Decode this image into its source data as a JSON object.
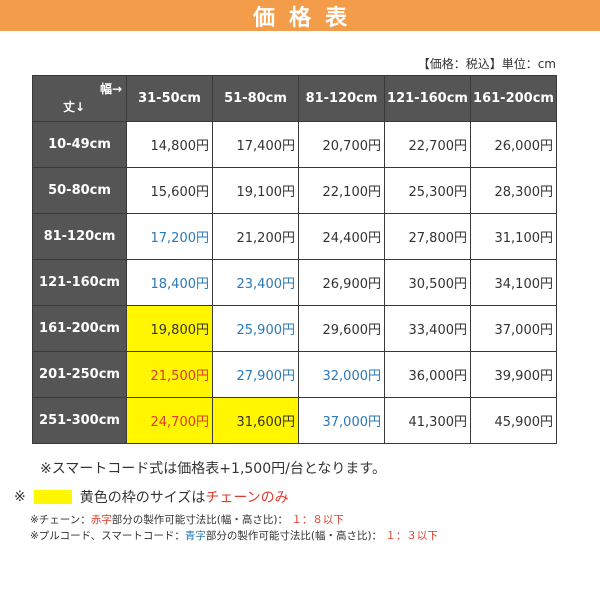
{
  "banner": {
    "title": "価格表"
  },
  "unit_note": "【価格：税込】単位：cm",
  "table": {
    "corner_width": "幅→",
    "corner_height": "丈↓",
    "columns": [
      "31-50cm",
      "51-80cm",
      "81-120cm",
      "121-160cm",
      "161-200cm"
    ],
    "rows": [
      {
        "label": "10-49cm",
        "cells": [
          {
            "v": "14,800円",
            "c": "black",
            "bg": ""
          },
          {
            "v": "17,400円",
            "c": "black",
            "bg": ""
          },
          {
            "v": "20,700円",
            "c": "black",
            "bg": ""
          },
          {
            "v": "22,700円",
            "c": "black",
            "bg": ""
          },
          {
            "v": "26,000円",
            "c": "black",
            "bg": ""
          }
        ]
      },
      {
        "label": "50-80cm",
        "cells": [
          {
            "v": "15,600円",
            "c": "black",
            "bg": ""
          },
          {
            "v": "19,100円",
            "c": "black",
            "bg": ""
          },
          {
            "v": "22,100円",
            "c": "black",
            "bg": ""
          },
          {
            "v": "25,300円",
            "c": "black",
            "bg": ""
          },
          {
            "v": "28,300円",
            "c": "black",
            "bg": ""
          }
        ]
      },
      {
        "label": "81-120cm",
        "cells": [
          {
            "v": "17,200円",
            "c": "blue",
            "bg": ""
          },
          {
            "v": "21,200円",
            "c": "black",
            "bg": ""
          },
          {
            "v": "24,400円",
            "c": "black",
            "bg": ""
          },
          {
            "v": "27,800円",
            "c": "black",
            "bg": ""
          },
          {
            "v": "31,100円",
            "c": "black",
            "bg": ""
          }
        ]
      },
      {
        "label": "121-160cm",
        "cells": [
          {
            "v": "18,400円",
            "c": "blue",
            "bg": ""
          },
          {
            "v": "23,400円",
            "c": "blue",
            "bg": ""
          },
          {
            "v": "26,900円",
            "c": "black",
            "bg": ""
          },
          {
            "v": "30,500円",
            "c": "black",
            "bg": ""
          },
          {
            "v": "34,100円",
            "c": "black",
            "bg": ""
          }
        ]
      },
      {
        "label": "161-200cm",
        "cells": [
          {
            "v": "19,800円",
            "c": "black",
            "bg": "yellow"
          },
          {
            "v": "25,900円",
            "c": "blue",
            "bg": ""
          },
          {
            "v": "29,600円",
            "c": "black",
            "bg": ""
          },
          {
            "v": "33,400円",
            "c": "black",
            "bg": ""
          },
          {
            "v": "37,000円",
            "c": "black",
            "bg": ""
          }
        ]
      },
      {
        "label": "201-250cm",
        "cells": [
          {
            "v": "21,500円",
            "c": "red",
            "bg": "yellow"
          },
          {
            "v": "27,900円",
            "c": "blue",
            "bg": ""
          },
          {
            "v": "32,000円",
            "c": "blue",
            "bg": ""
          },
          {
            "v": "36,000円",
            "c": "black",
            "bg": ""
          },
          {
            "v": "39,900円",
            "c": "black",
            "bg": ""
          }
        ]
      },
      {
        "label": "251-300cm",
        "cells": [
          {
            "v": "24,700円",
            "c": "red",
            "bg": "yellow"
          },
          {
            "v": "31,600円",
            "c": "black",
            "bg": "yellow"
          },
          {
            "v": "37,000円",
            "c": "blue",
            "bg": ""
          },
          {
            "v": "41,300円",
            "c": "black",
            "bg": ""
          },
          {
            "v": "45,900円",
            "c": "black",
            "bg": ""
          }
        ]
      }
    ]
  },
  "notes": {
    "smart_cord": "※スマートコード式は価格表+1,500円/台となります。",
    "legend_mark": "※",
    "legend_text": "黄色の枠のサイズは",
    "legend_red": "チェーンのみ",
    "small1_a": "※チェーン：",
    "small1_b": "赤字",
    "small1_c": "部分の製作可能寸法比(幅・高さ比)：",
    "small1_d": "１：８以下",
    "small2_a": "※プルコード、スマートコード：",
    "small2_b": "青字",
    "small2_c": "部分の製作可能寸法比(幅・高さ比)：",
    "small2_d": "１：３以下"
  },
  "colors": {
    "banner": "#f39c4a",
    "header": "#555555",
    "highlight": "#fff600",
    "red": "#e03a2a",
    "blue": "#2a79b8"
  }
}
